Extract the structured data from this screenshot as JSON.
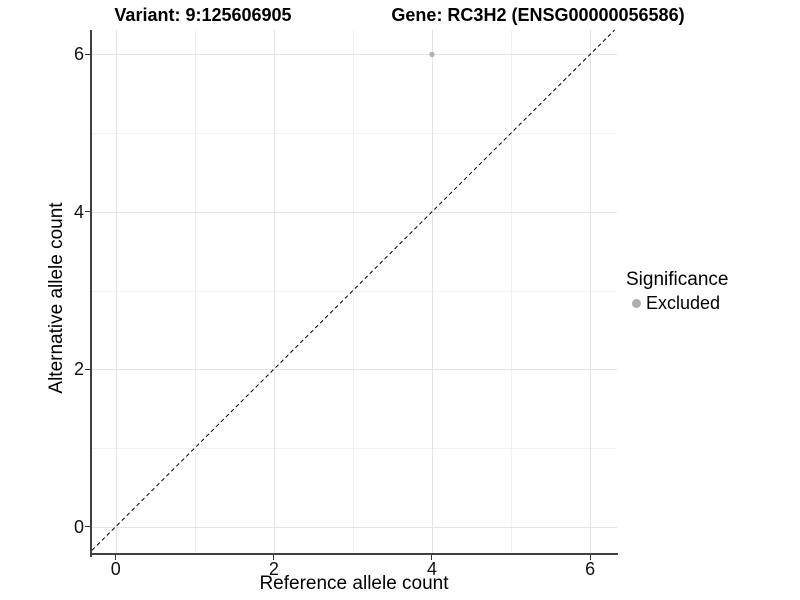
{
  "titles": {
    "left": "Variant: 9:125606905",
    "right": "Gene: RC3H2 (ENSG00000056586)"
  },
  "chart_data": {
    "type": "scatter",
    "title_left": "Variant: 9:125606905",
    "title_right": "Gene: RC3H2 (ENSG00000056586)",
    "xlabel": "Reference allele count",
    "ylabel": "Alternative allele count",
    "xlim": [
      -0.3,
      6.34
    ],
    "ylim": [
      -0.36,
      6.31
    ],
    "x_ticks": [
      0,
      2,
      4,
      6
    ],
    "y_ticks": [
      0,
      2,
      4,
      6
    ],
    "x_minor_ticks": [
      1,
      3,
      5
    ],
    "y_minor_ticks": [
      1,
      3,
      5
    ],
    "grid": true,
    "points": [
      {
        "x": 4,
        "y": 6,
        "significance": "Excluded"
      }
    ],
    "reference_line": {
      "kind": "abline",
      "slope": 1,
      "intercept": 0,
      "style": "dashed"
    },
    "legend": {
      "title": "Significance",
      "position": "right",
      "items": [
        {
          "label": "Excluded",
          "color": "#adadad"
        }
      ]
    },
    "colors": {
      "point": "#b2b2b2",
      "grid_major": "#e4e4e4",
      "grid_minor": "#f1f1f1",
      "axis_line": "#404040",
      "tick_mark": "#333333",
      "reference_line": "#000000"
    }
  }
}
